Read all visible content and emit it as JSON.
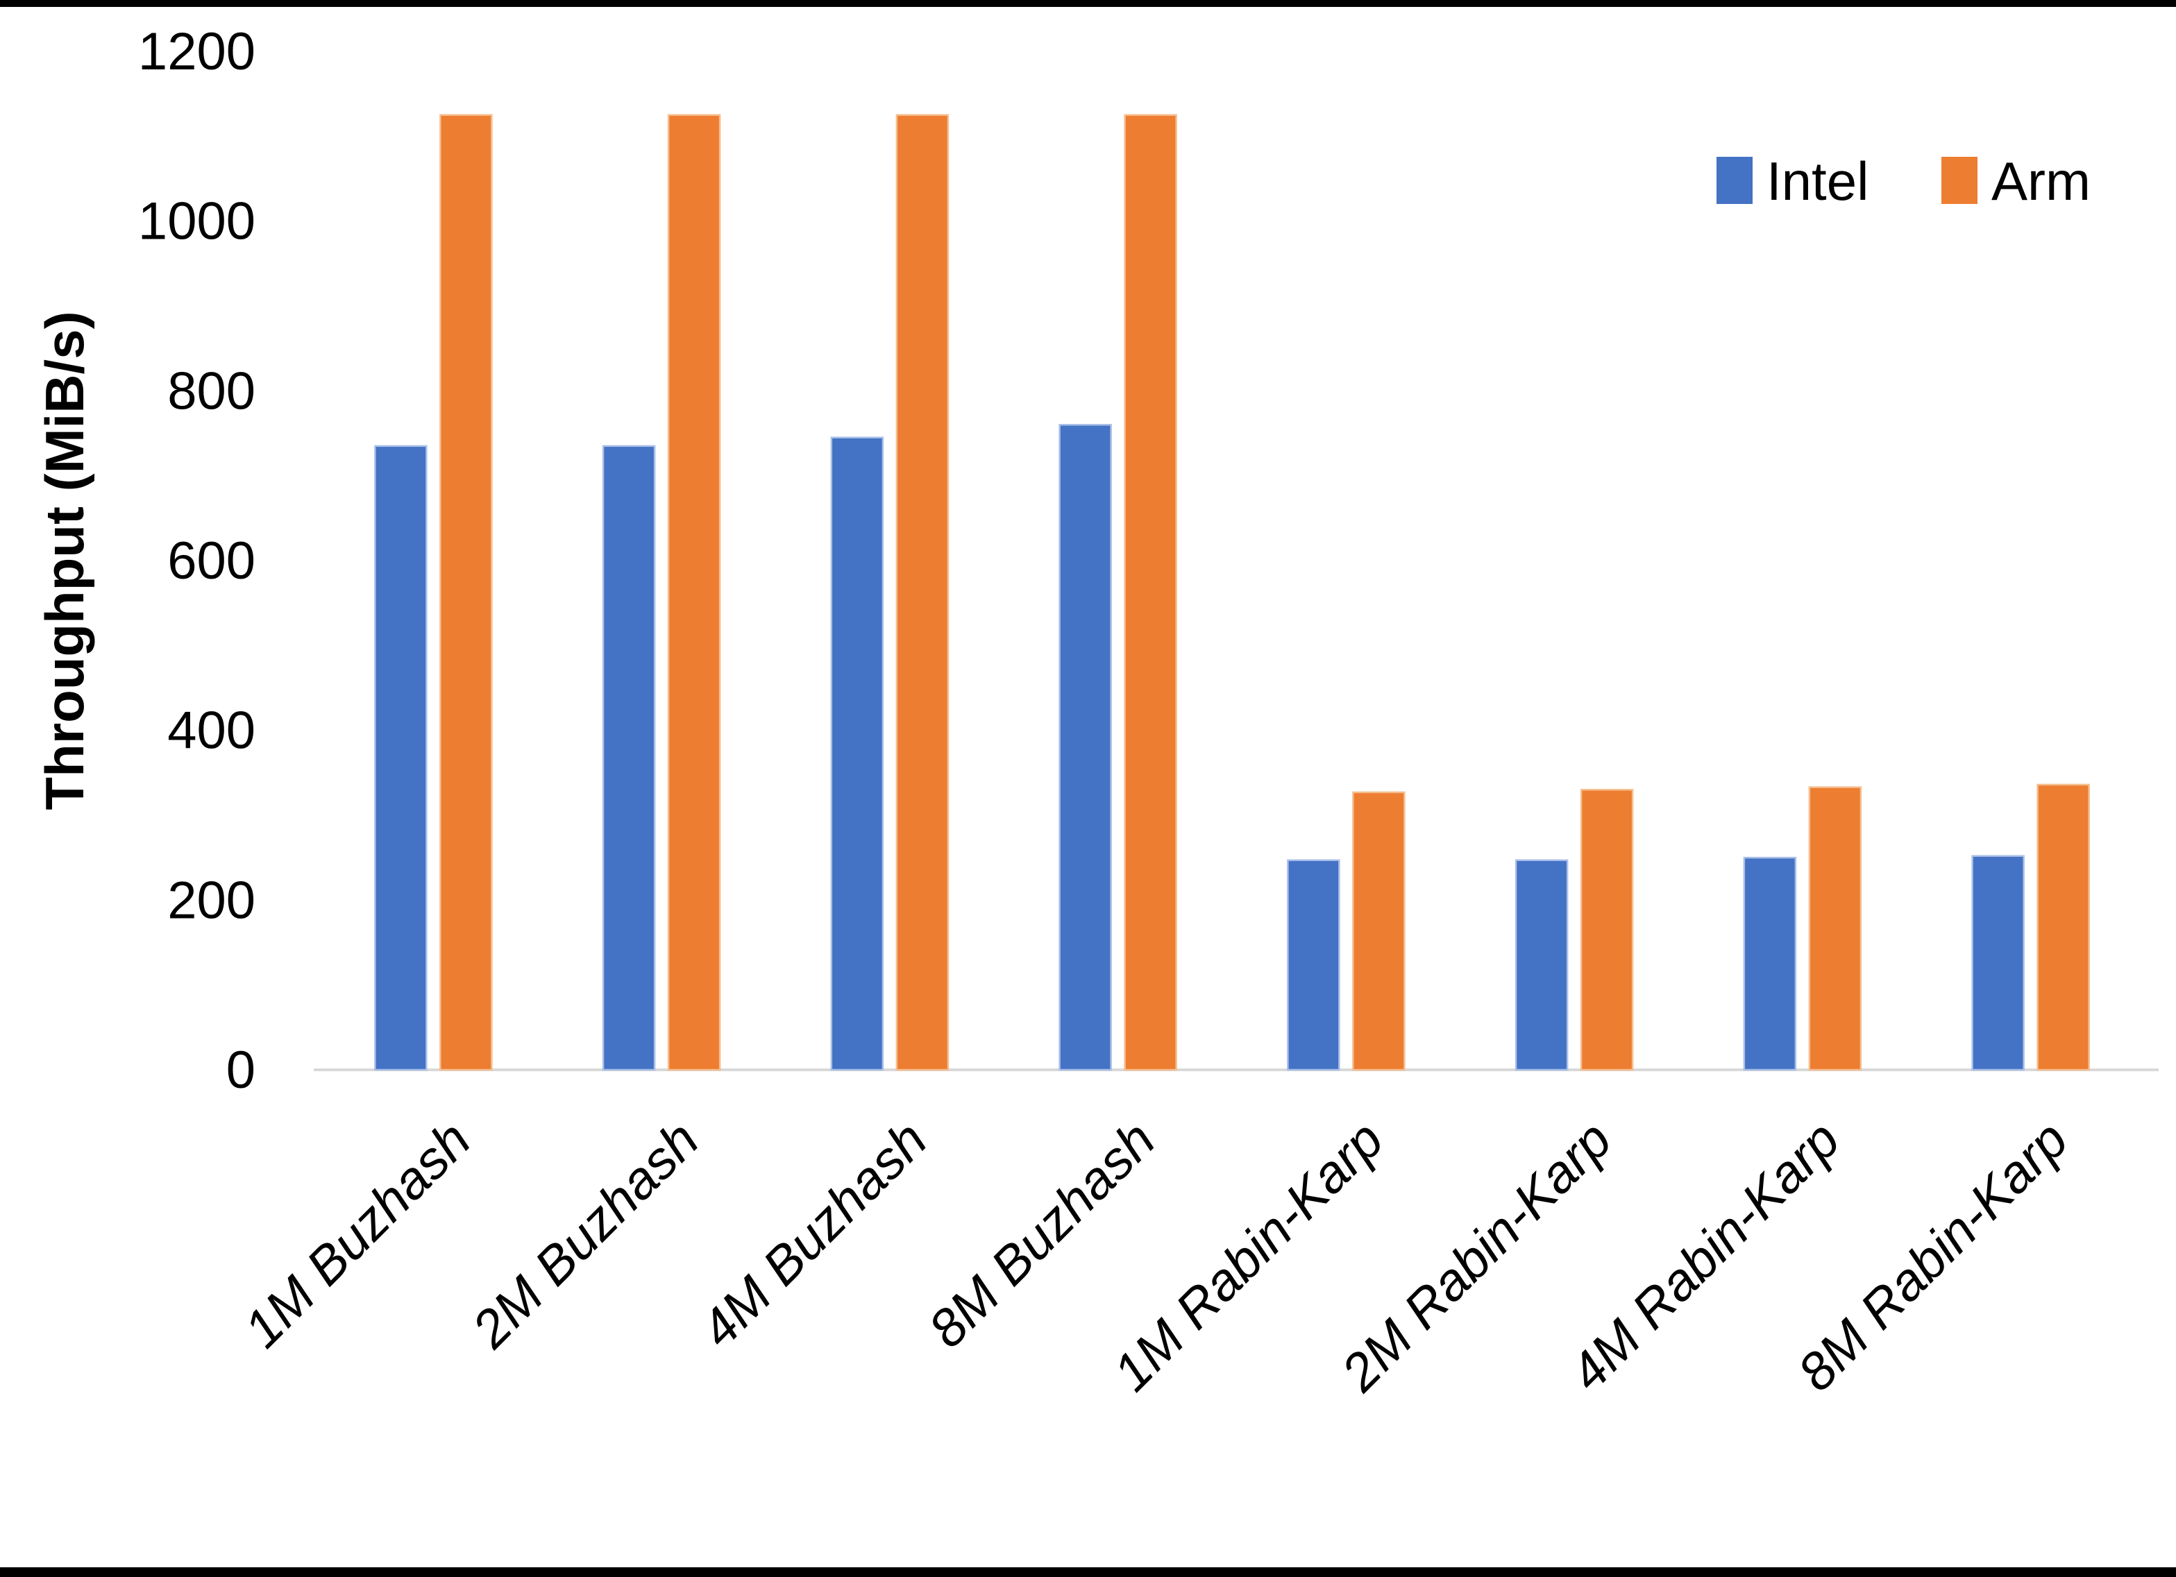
{
  "chart_data": {
    "type": "bar",
    "title": "",
    "xlabel": "",
    "ylabel": "Throughput (MiB/s)",
    "ylim": [
      0,
      1200
    ],
    "ytick_step": 200,
    "yticks": [
      0,
      200,
      400,
      600,
      800,
      1000,
      1200
    ],
    "grid": false,
    "legend_position": "top-right",
    "categories": [
      "1M Buzhash",
      "2M Buzhash",
      "4M Buzhash",
      "8M Buzhash",
      "1M Rabin-Karp",
      "2M Rabin-Karp",
      "4M Rabin-Karp",
      "8M Rabin-Karp"
    ],
    "series": [
      {
        "name": "Intel",
        "color": "#4472C4",
        "edge_color": "#A9C0E8",
        "values": [
          735,
          735,
          745,
          760,
          247,
          247,
          250,
          252
        ]
      },
      {
        "name": "Arm",
        "color": "#ED7D31",
        "edge_color": "#F5BE8E",
        "values": [
          1125,
          1125,
          1125,
          1125,
          327,
          330,
          333,
          336
        ]
      }
    ],
    "axis_line_color": "#D9D9D9",
    "text_color": "#000000",
    "background_color": "#FFFFFF",
    "frame_border_color": "#000000"
  }
}
